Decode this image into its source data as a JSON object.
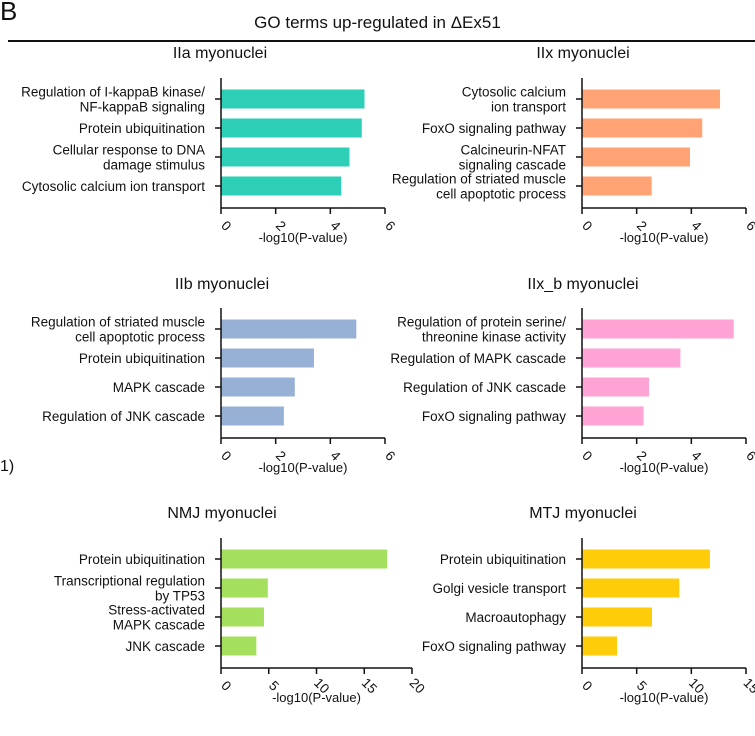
{
  "panel_letter": "B",
  "side_mark": "1)",
  "figure_title": "GO terms up-regulated in ΔEx51",
  "colors": {
    "teal": "#2DCFB7",
    "salmon": "#FFA374",
    "blue": "#97B0D6",
    "pink": "#FFA2D4",
    "green": "#A5DF5E",
    "yellow": "#FFCC0A"
  },
  "chart_data": [
    {
      "type": "bar",
      "title": "IIa myonuclei",
      "xlabel": "-log10(P-value)",
      "xlim": [
        0,
        6
      ],
      "ticks": [
        0,
        2,
        4,
        6
      ],
      "color": "#2DCFB7",
      "categories": [
        [
          "Regulation of I-kappaB kinase/",
          "NF-kappaB signaling"
        ],
        [
          "Protein ubiquitination"
        ],
        [
          "Cellular response to DNA",
          "damage stimulus"
        ],
        [
          "Cytosolic calcium ion transport"
        ]
      ],
      "values": [
        5.25,
        5.15,
        4.7,
        4.4
      ]
    },
    {
      "type": "bar",
      "title": "IIx myonuclei",
      "xlabel": "-log10(P-value)",
      "xlim": [
        0,
        6
      ],
      "ticks": [
        0,
        2,
        4,
        6
      ],
      "color": "#FFA374",
      "categories": [
        [
          "Cytosolic calcium",
          "ion transport"
        ],
        [
          "FoxO signaling pathway"
        ],
        [
          "Calcineurin-NFAT",
          "signaling cascade"
        ],
        [
          "Regulation of striated muscle",
          "cell apoptotic process"
        ]
      ],
      "values": [
        5.05,
        4.4,
        3.95,
        2.55
      ]
    },
    {
      "type": "bar",
      "title": "IIb myonuclei",
      "xlabel": "-log10(P-value)",
      "xlim": [
        0,
        6
      ],
      "ticks": [
        0,
        2,
        4,
        6
      ],
      "color": "#97B0D6",
      "categories": [
        [
          "Regulation of striated muscle",
          "cell apoptotic process"
        ],
        [
          "Protein ubiquitination"
        ],
        [
          "MAPK cascade"
        ],
        [
          "Regulation of JNK cascade"
        ]
      ],
      "values": [
        4.95,
        3.4,
        2.7,
        2.3
      ]
    },
    {
      "type": "bar",
      "title": "IIx_b myonuclei",
      "xlabel": "-log10(P-value)",
      "xlim": [
        0,
        6
      ],
      "ticks": [
        0,
        2,
        4,
        6
      ],
      "color": "#FFA2D4",
      "categories": [
        [
          "Regulation of protein serine/",
          "threonine kinase activity"
        ],
        [
          "Regulation of MAPK cascade"
        ],
        [
          "Regulation of JNK cascade"
        ],
        [
          "FoxO signaling pathway"
        ]
      ],
      "values": [
        5.55,
        3.6,
        2.45,
        2.25
      ]
    },
    {
      "type": "bar",
      "title": "NMJ myonuclei",
      "xlabel": "-log10(P-value)",
      "xlim": [
        0,
        20
      ],
      "ticks": [
        0,
        5,
        10,
        15,
        20
      ],
      "color": "#A5DF5E",
      "categories": [
        [
          "Protein ubiquitination"
        ],
        [
          "Transcriptional regulation",
          "by TP53"
        ],
        [
          "Stress-activated",
          "MAPK cascade"
        ],
        [
          "JNK cascade"
        ]
      ],
      "values": [
        17.4,
        4.9,
        4.5,
        3.7
      ]
    },
    {
      "type": "bar",
      "title": "MTJ myonuclei",
      "xlabel": "-log10(P-value)",
      "xlim": [
        0,
        15
      ],
      "ticks": [
        0,
        5,
        10,
        15
      ],
      "color": "#FFCC0A",
      "categories": [
        [
          "Protein ubiquitination"
        ],
        [
          "Golgi vesicle transport"
        ],
        [
          "Macroautophagy"
        ],
        [
          "FoxO signaling pathway"
        ]
      ],
      "values": [
        11.7,
        8.9,
        6.4,
        3.2
      ]
    }
  ]
}
